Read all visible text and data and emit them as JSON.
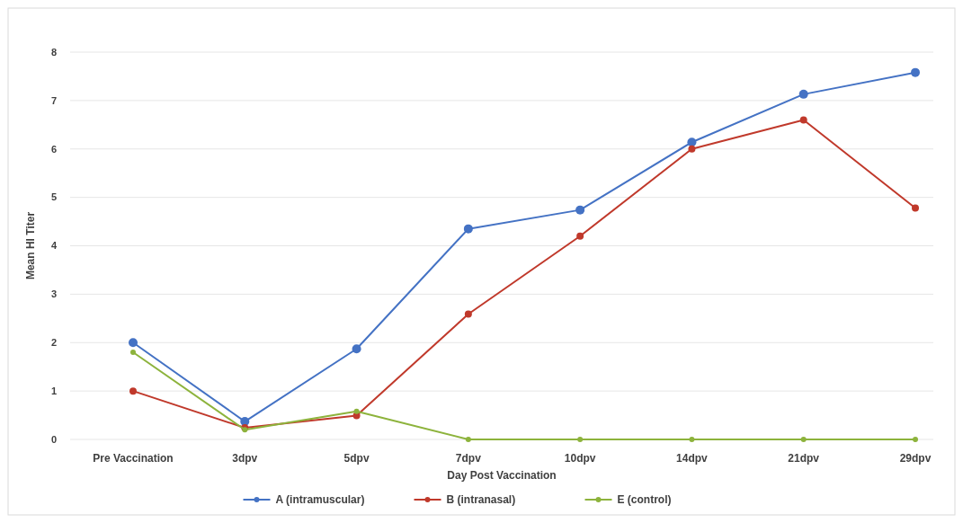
{
  "chart_data": {
    "type": "line",
    "xlabel": "Day Post Vaccination",
    "ylabel": "Mean HI Titer",
    "categories": [
      "Pre Vaccination",
      "3dpv",
      "5dpv",
      "7dpv",
      "10dpv",
      "14dpv",
      "21dpv",
      "29dpv"
    ],
    "series": [
      {
        "name": "A (intramuscular)",
        "color": "#4472c4",
        "values": [
          2.0,
          0.37,
          1.87,
          4.35,
          4.74,
          6.14,
          7.13,
          7.58
        ]
      },
      {
        "name": "B (intranasal)",
        "color": "#c0392b",
        "values": [
          1.0,
          0.24,
          0.49,
          2.59,
          4.2,
          6.0,
          6.6,
          4.78
        ]
      },
      {
        "name": "E (control)",
        "color": "#8db33c",
        "values": [
          1.8,
          0.2,
          0.58,
          0,
          0,
          0,
          0,
          0
        ]
      }
    ],
    "ylim": [
      0,
      8
    ],
    "yticks": [
      0,
      1,
      2,
      3,
      4,
      5,
      6,
      7,
      8
    ],
    "grid": "y",
    "legend": "bottom",
    "marker": "circle",
    "line_style": "solid"
  }
}
